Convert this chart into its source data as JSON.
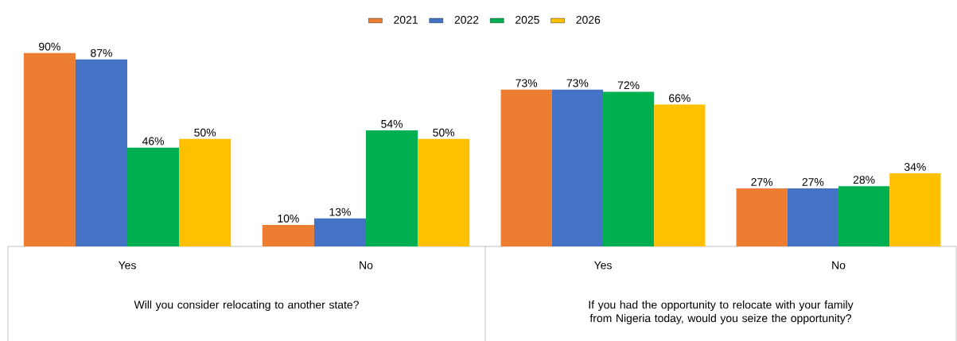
{
  "chart_data": [
    {
      "type": "bar",
      "xlabel": "Will you consider relocating to another state?",
      "categories": [
        "Yes",
        "No"
      ],
      "legend": "top",
      "series": [
        {
          "name": "2021",
          "color": "#ed7d31",
          "values": [
            90,
            10
          ],
          "value_labels": [
            "90%",
            "10%"
          ]
        },
        {
          "name": "2022",
          "color": "#4472c4",
          "values": [
            87,
            13
          ],
          "value_labels": [
            "87%",
            "13%"
          ]
        },
        {
          "name": "2025",
          "color": "#00b050",
          "values": [
            46,
            54
          ],
          "value_labels": [
            "46%",
            "54%"
          ]
        },
        {
          "name": "2026",
          "color": "#ffc000",
          "values": [
            50,
            50
          ],
          "value_labels": [
            "50%",
            "50%"
          ]
        }
      ]
    },
    {
      "type": "bar",
      "xlabel": "If you had the opportunity to relocate with your family from Nigeria today, would you seize the opportunity?",
      "categories": [
        "Yes",
        "No"
      ],
      "series": [
        {
          "color": "#ed7d31",
          "values": [
            73,
            27
          ],
          "value_labels": [
            "73%",
            "27%"
          ]
        },
        {
          "color": "#4472c4",
          "values": [
            73,
            27
          ],
          "value_labels": [
            "73%",
            "27%"
          ]
        },
        {
          "color": "#00b050",
          "values": [
            72,
            28
          ],
          "value_labels": [
            "72%",
            "28%"
          ]
        },
        {
          "color": "#ffc000",
          "values": [
            66,
            34
          ],
          "value_labels": [
            "66%",
            "34%"
          ]
        }
      ]
    }
  ]
}
